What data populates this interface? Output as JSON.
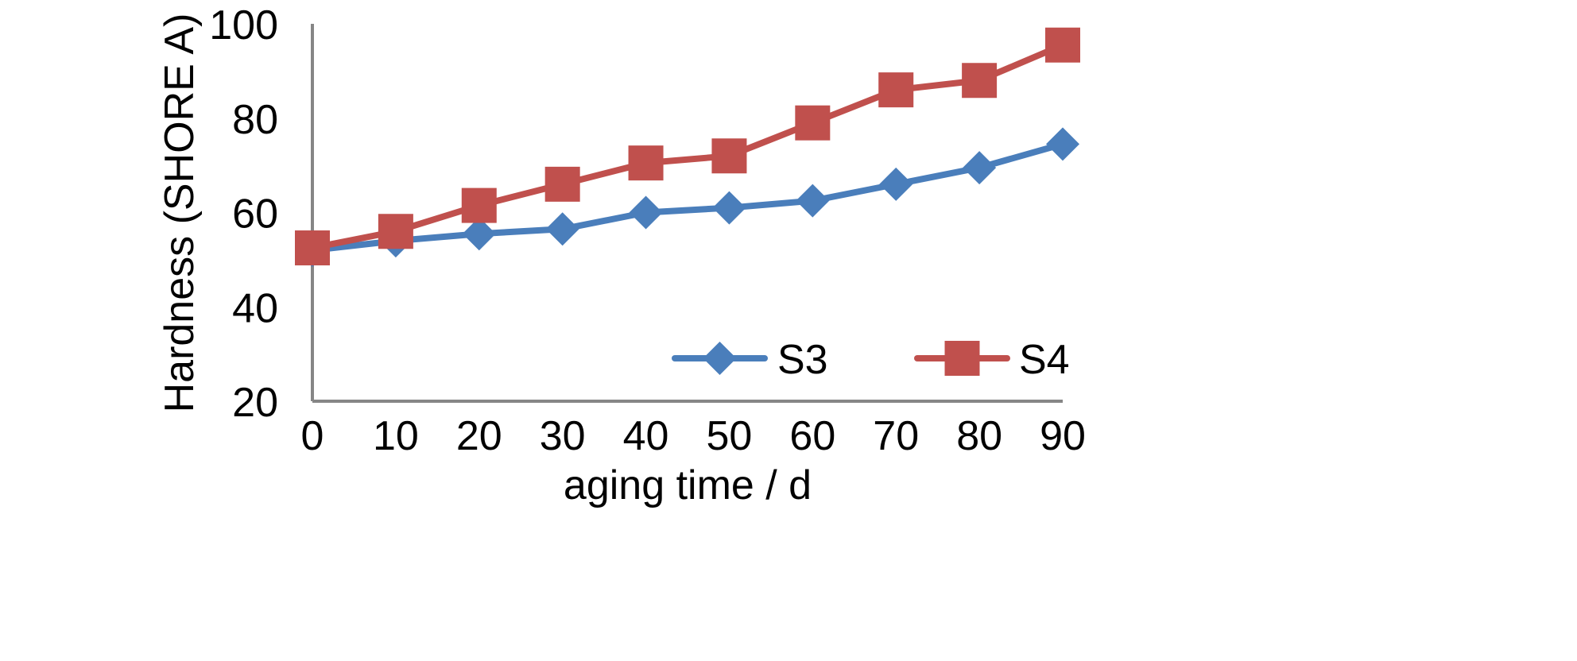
{
  "chart_data": {
    "type": "line",
    "title": "",
    "xlabel": "aging time / d",
    "ylabel": "Hardness (SHORE A)",
    "xlim": [
      0,
      90
    ],
    "ylim": [
      20,
      100
    ],
    "x": [
      0,
      10,
      20,
      30,
      40,
      50,
      60,
      70,
      80,
      90
    ],
    "x_ticks": [
      "0",
      "10",
      "20",
      "30",
      "40",
      "50",
      "60",
      "70",
      "80",
      "90"
    ],
    "y_ticks": [
      "20",
      "40",
      "60",
      "80",
      "100"
    ],
    "grid": false,
    "legend_position": "bottom-right",
    "series": [
      {
        "name": "S3",
        "color": "#4a7ebb",
        "marker": "diamond",
        "values": [
          52,
          54,
          55.5,
          56.5,
          60,
          61,
          62.5,
          66,
          69.5,
          74.5
        ]
      },
      {
        "name": "S4",
        "color": "#c0504d",
        "marker": "square",
        "values": [
          52.5,
          56,
          61.5,
          66,
          70.5,
          72,
          79,
          86,
          88,
          95.5
        ]
      }
    ]
  }
}
